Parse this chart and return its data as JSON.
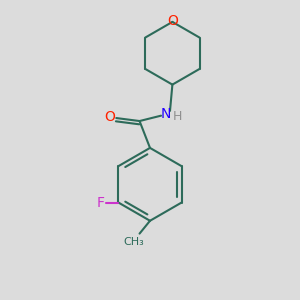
{
  "background_color": "#dcdcdc",
  "bond_color": "#2d6b5a",
  "bond_width": 1.5,
  "O_color": "#ff2200",
  "N_color": "#2200ff",
  "F_color": "#cc33cc",
  "figsize": [
    3.0,
    3.0
  ],
  "dpi": 100,
  "xlim": [
    0,
    10
  ],
  "ylim": [
    0,
    10
  ]
}
